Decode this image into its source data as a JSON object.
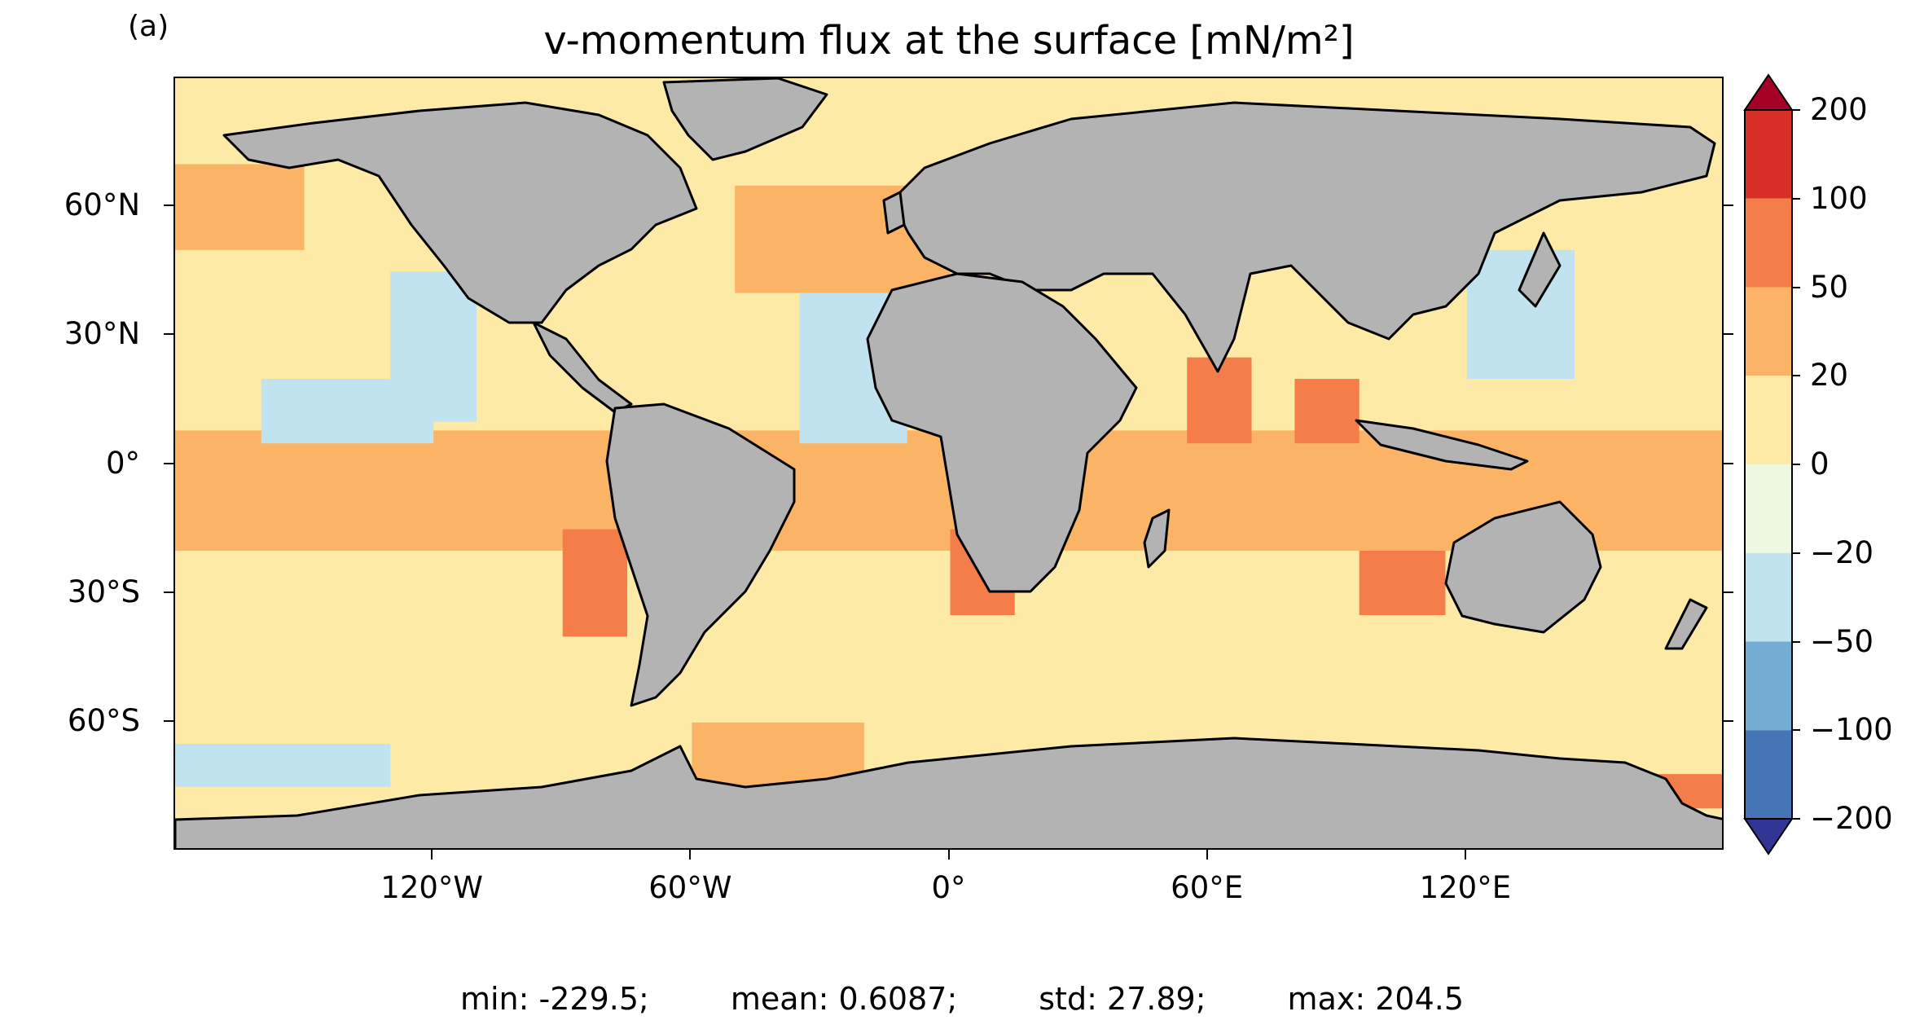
{
  "figure": {
    "panel_label": "(a)",
    "title": "v-momentum flux at the surface [mN/m²]"
  },
  "map": {
    "projection": "PlateCarree",
    "lon_range": [
      -180,
      180
    ],
    "lat_range": [
      -90,
      90
    ],
    "land_color": "#b3b3b3",
    "coastline_color": "#000000",
    "y_ticks": [
      {
        "lat": 60,
        "label": "60°N"
      },
      {
        "lat": 30,
        "label": "30°N"
      },
      {
        "lat": 0,
        "label": "0°"
      },
      {
        "lat": -30,
        "label": "30°S"
      },
      {
        "lat": -60,
        "label": "60°S"
      }
    ],
    "x_ticks": [
      {
        "lon": -120,
        "label": "120°W"
      },
      {
        "lon": -60,
        "label": "60°W"
      },
      {
        "lon": 0,
        "label": "0°"
      },
      {
        "lon": 60,
        "label": "60°E"
      },
      {
        "lon": 120,
        "label": "120°E"
      }
    ]
  },
  "colorbar": {
    "boundaries": [
      -200,
      -100,
      -50,
      -20,
      0,
      20,
      50,
      100,
      200
    ],
    "tick_labels": [
      "200",
      "100",
      "50",
      "20",
      "0",
      "−20",
      "−50",
      "−100",
      "−200"
    ],
    "colors": [
      "#313695",
      "#4575b4",
      "#74add1",
      "#c1e3ef",
      "#eef7df",
      "#fdeaa6",
      "#fbb466",
      "#f47d49",
      "#d73027",
      "#a50026"
    ],
    "extend": "both"
  },
  "stats": {
    "min": "min: -229.5;",
    "mean": "mean: 0.6087;",
    "std": "std: 27.89;",
    "max": "max: 204.5"
  },
  "chart_data": {
    "type": "heatmap",
    "title": "v-momentum flux at the surface [mN/m²]",
    "units": "mN/m²",
    "x": "longitude",
    "y": "latitude",
    "xlim": [
      -180,
      180
    ],
    "ylim": [
      -90,
      90
    ],
    "color_levels": [
      -200,
      -100,
      -50,
      -20,
      0,
      20,
      50,
      100,
      200
    ],
    "summary": {
      "min": -229.5,
      "mean": 0.6087,
      "std": 27.89,
      "max": 204.5
    },
    "regions": [
      {
        "lon": [
          -180,
          -150
        ],
        "lat": [
          50,
          70
        ],
        "level": 35
      },
      {
        "lon": [
          -180,
          180
        ],
        "lat": [
          -20,
          8
        ],
        "level": 30
      },
      {
        "lon": [
          -130,
          -110
        ],
        "lat": [
          10,
          45
        ],
        "level": -30
      },
      {
        "lon": [
          -160,
          -120
        ],
        "lat": [
          5,
          20
        ],
        "level": -35
      },
      {
        "lon": [
          -90,
          -75
        ],
        "lat": [
          -40,
          -15
        ],
        "level": 70
      },
      {
        "lon": [
          -35,
          -10
        ],
        "lat": [
          5,
          40
        ],
        "level": -35
      },
      {
        "lon": [
          -50,
          0
        ],
        "lat": [
          40,
          65
        ],
        "level": 35
      },
      {
        "lon": [
          0,
          15
        ],
        "lat": [
          -35,
          -15
        ],
        "level": 70
      },
      {
        "lon": [
          55,
          70
        ],
        "lat": [
          5,
          25
        ],
        "level": 70
      },
      {
        "lon": [
          80,
          95
        ],
        "lat": [
          5,
          20
        ],
        "level": 70
      },
      {
        "lon": [
          95,
          115
        ],
        "lat": [
          -35,
          -20
        ],
        "level": 70
      },
      {
        "lon": [
          120,
          145
        ],
        "lat": [
          20,
          50
        ],
        "level": -35
      },
      {
        "lon": [
          -60,
          -20
        ],
        "lat": [
          -80,
          -60
        ],
        "level": 35
      },
      {
        "lon": [
          -180,
          -130
        ],
        "lat": [
          -75,
          -65
        ],
        "level": -30
      },
      {
        "lon": [
          150,
          180
        ],
        "lat": [
          -80,
          -72
        ],
        "level": 70
      }
    ]
  }
}
